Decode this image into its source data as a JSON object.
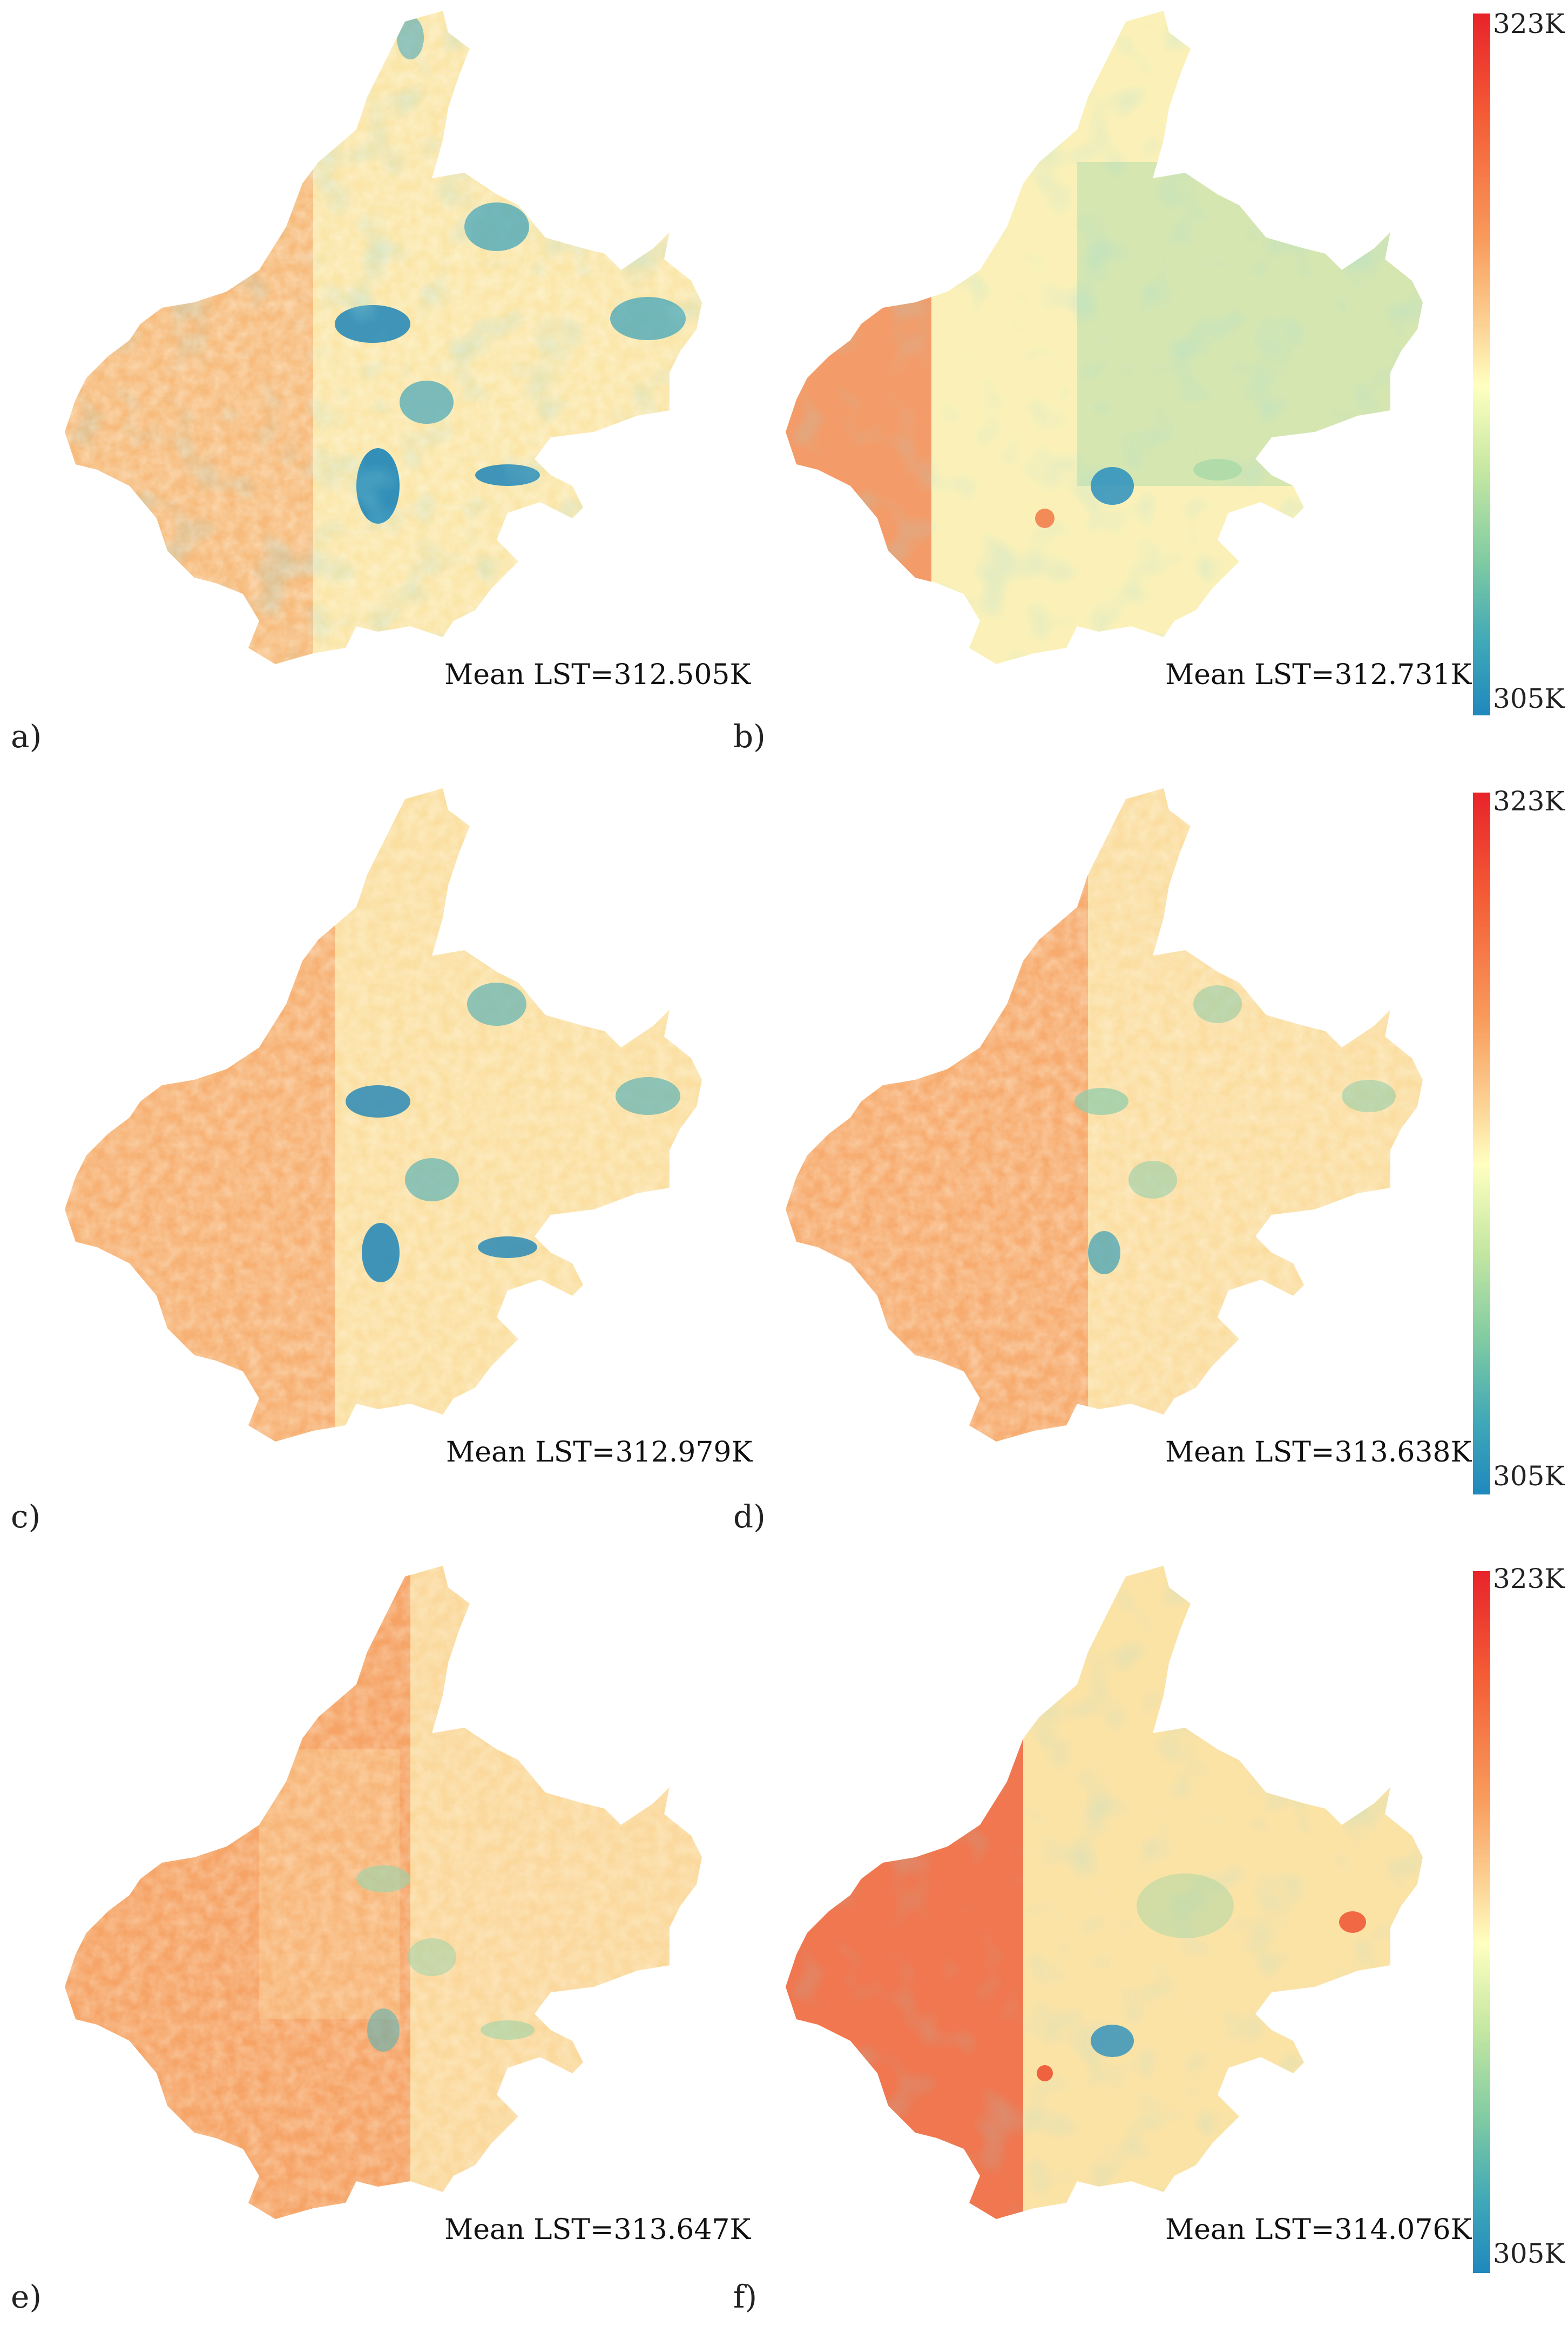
{
  "panels": [
    {
      "id": "a",
      "letter": "a)",
      "mean_label": "Mean LST=312.505K",
      "colors": {
        "warm": "#f6b071",
        "mid": "#fbe6a8",
        "cool": "#4fa9b9",
        "accent": "#1d85b8"
      }
    },
    {
      "id": "b",
      "letter": "b)",
      "mean_label": "Mean LST=312.731K",
      "colors": {
        "warm": "#f27f4f",
        "mid": "#fbf1b8",
        "cool": "#a7d9a8",
        "accent": "#2a8fbe"
      }
    },
    {
      "id": "c",
      "letter": "c)",
      "mean_label": "Mean LST=312.979K",
      "colors": {
        "warm": "#f6a86a",
        "mid": "#fbdfa1",
        "cool": "#5fb3b5",
        "accent": "#1d85b8"
      }
    },
    {
      "id": "d",
      "letter": "d)",
      "mean_label": "Mean LST=313.638K",
      "colors": {
        "warm": "#f6a265",
        "mid": "#fbdda0",
        "cool": "#8ccca9",
        "accent": "#3aa0b8"
      }
    },
    {
      "id": "e",
      "letter": "e)",
      "mean_label": "Mean LST=313.647K",
      "colors": {
        "warm": "#f49a5c",
        "mid": "#fbd89b",
        "cool": "#9ed3a9",
        "accent": "#5db2b4"
      }
    },
    {
      "id": "f",
      "letter": "f)",
      "mean_label": "Mean LST=314.076K",
      "colors": {
        "warm": "#ee5b3a",
        "mid": "#fbe3a6",
        "cool": "#9fd4a7",
        "accent": "#2a8fbe"
      }
    }
  ],
  "colorbars": [
    {
      "max_label": "323K",
      "min_label": "305K"
    },
    {
      "max_label": "323K",
      "min_label": "305K"
    },
    {
      "max_label": "323K",
      "min_label": "305K"
    }
  ],
  "colors": {
    "scale": [
      "#e8232a",
      "#f45d36",
      "#f89a5a",
      "#fcd597",
      "#ffffc0",
      "#c6e8a2",
      "#80cba2",
      "#3ea7b8",
      "#1f88bd"
    ]
  }
}
